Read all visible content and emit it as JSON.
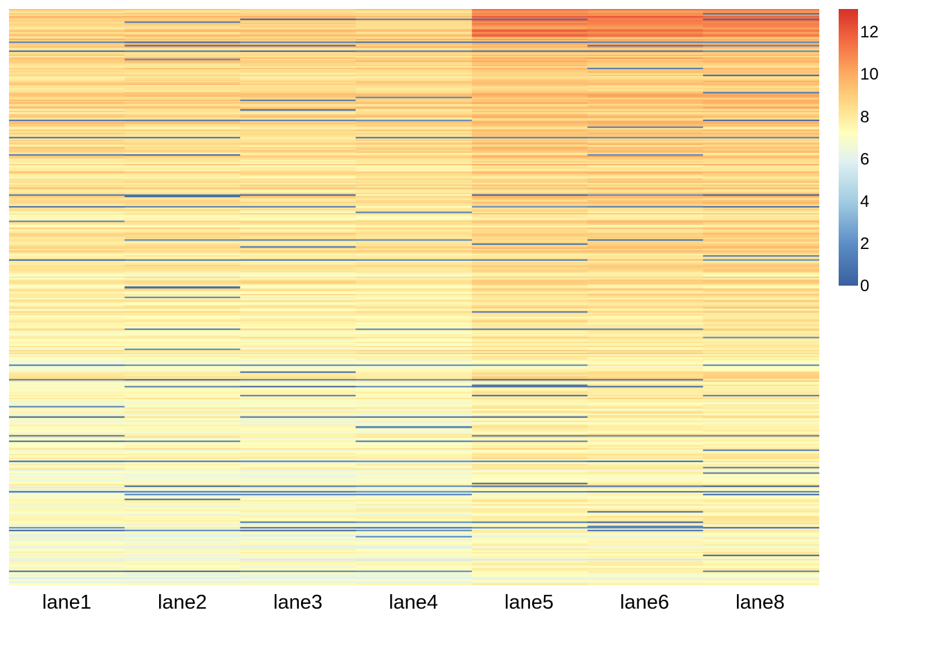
{
  "chart_data": {
    "type": "heatmap",
    "title": "",
    "xlabel": "",
    "ylabel": "",
    "columns": [
      "lane1",
      "lane2",
      "lane3",
      "lane4",
      "lane5",
      "lane6",
      "lane8"
    ],
    "row_count": 400,
    "row_labels_shown": false,
    "color_scale": {
      "min": 0,
      "max": 13,
      "ticks": [
        "0",
        "2",
        "4",
        "6",
        "8",
        "10",
        "12"
      ],
      "colors": [
        "#3a5fa0",
        "#5b8dc4",
        "#9fcbe2",
        "#e0f1f2",
        "#ffffbe",
        "#fee08e",
        "#fdae61",
        "#f46d43",
        "#d73027"
      ]
    },
    "legend_position": "top-right",
    "note_on_values": "per-row expression values not individually legible; rows sorted with highest values at top, lanes 5-8 generally higher than lanes 1-4"
  }
}
